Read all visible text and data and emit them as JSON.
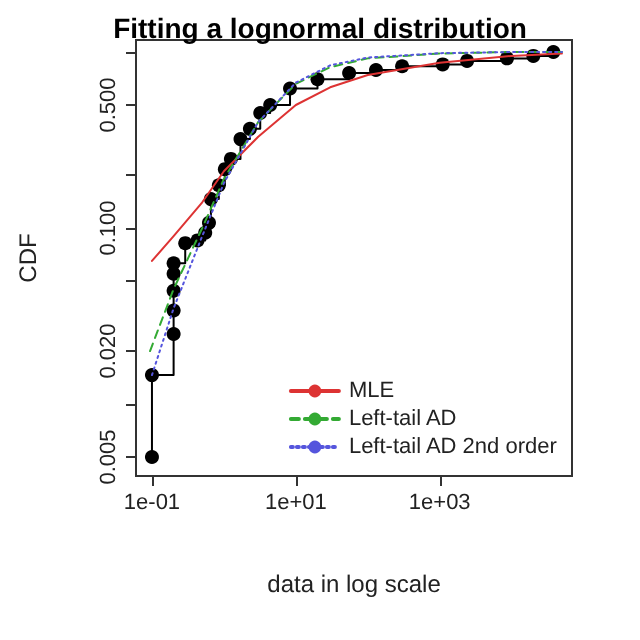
{
  "chart_data": {
    "type": "line",
    "title": "Fitting a lognormal distribution",
    "xlabel": "data in log scale",
    "ylabel": "CDF",
    "log": "xy",
    "grid": false,
    "legend": "bottom right",
    "xlim": [
      0.06,
      69000
    ],
    "ylim": [
      0.0039,
      1.17
    ],
    "xticks": [
      {
        "value": 0.1,
        "label": "1e-01"
      },
      {
        "value": 10,
        "label": "1e+01"
      },
      {
        "value": 1000,
        "label": "1e+03"
      }
    ],
    "yticks": [
      {
        "value": 0.005,
        "label": "0.005"
      },
      {
        "value": 0.01,
        "label": null
      },
      {
        "value": 0.02,
        "label": "0.020"
      },
      {
        "value": 0.05,
        "label": null
      },
      {
        "value": 0.1,
        "label": "0.100"
      },
      {
        "value": 0.2,
        "label": null
      },
      {
        "value": 0.5,
        "label": "0.500"
      },
      {
        "value": 1,
        "label": null
      }
    ],
    "series": [
      {
        "type": "step",
        "color": "#000000",
        "marker": "circle",
        "line_style": "solid",
        "x": [
          0.1,
          0.1,
          0.2,
          0.2,
          0.2,
          0.2,
          0.2,
          0.29,
          0.43,
          0.55,
          0.62,
          0.66,
          0.85,
          1.03,
          1.25,
          1.7,
          2.3,
          3.2,
          4.4,
          8.3,
          20,
          55,
          130,
          300,
          1100,
          2400,
          8600,
          20000,
          38000
        ],
        "values": [
          0.005,
          0.0146,
          0.025,
          0.034,
          0.044,
          0.055,
          0.063,
          0.082,
          0.085,
          0.094,
          0.107,
          0.146,
          0.175,
          0.216,
          0.247,
          0.32,
          0.366,
          0.45,
          0.5,
          0.62,
          0.7,
          0.76,
          0.79,
          0.83,
          0.85,
          0.89,
          0.92,
          0.95,
          1
        ]
      },
      {
        "name": "MLE",
        "color": "#dd3333",
        "marker": "none",
        "line_style": "solid",
        "x": [
          0.1,
          0.2,
          0.5,
          1,
          3,
          10,
          30,
          100,
          1000,
          10000,
          50000
        ],
        "values": [
          0.065,
          0.09,
          0.14,
          0.21,
          0.33,
          0.5,
          0.63,
          0.74,
          0.87,
          0.95,
          0.98
        ]
      },
      {
        "name": "Left-tail AD",
        "color": "#33aa33",
        "marker": "none",
        "line_style": "dashed",
        "x": [
          0.094,
          0.2,
          0.5,
          1,
          3,
          10,
          30,
          100,
          1000,
          10000,
          50000
        ],
        "values": [
          0.02,
          0.045,
          0.1,
          0.19,
          0.4,
          0.66,
          0.82,
          0.92,
          0.98,
          1,
          1
        ]
      },
      {
        "name": "Left-tail AD 2nd order",
        "color": "#5555dd",
        "marker": "none",
        "line_style": "dotted",
        "x": [
          0.1,
          0.2,
          0.5,
          1,
          3,
          10,
          30,
          100,
          1000,
          10000,
          50000
        ],
        "values": [
          0.0146,
          0.035,
          0.09,
          0.18,
          0.4,
          0.67,
          0.84,
          0.93,
          0.985,
          1,
          1
        ]
      }
    ]
  }
}
